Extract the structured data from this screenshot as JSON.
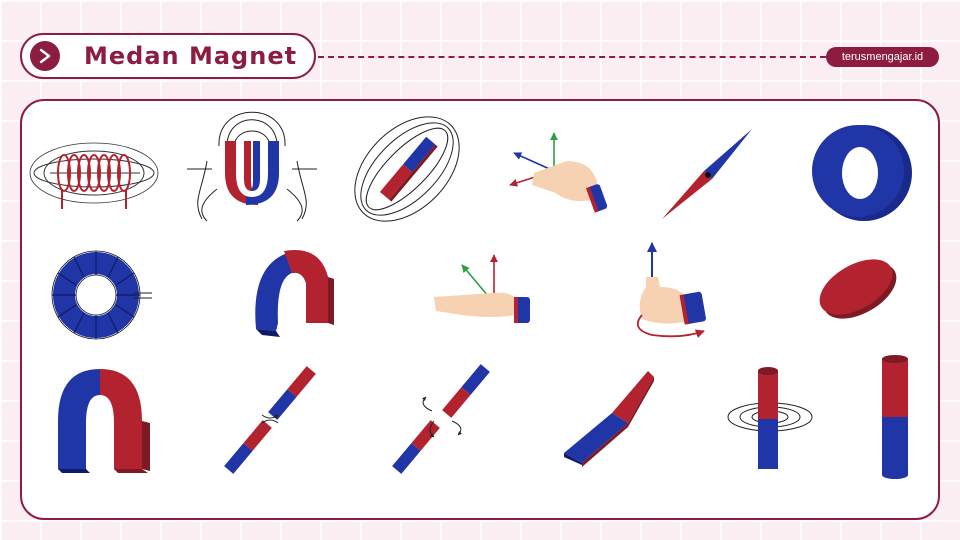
{
  "header": {
    "title": "Medan Magnet",
    "title_icon": "chevron-right-icon"
  },
  "brand": {
    "label": "terusmengajar.id"
  },
  "colors": {
    "accent": "#8c1d40",
    "magnet_red": "#b3232f",
    "magnet_blue": "#2035a6",
    "skin": "#f6d2b3"
  },
  "illustrations": [
    "solenoid-field-icon",
    "u-magnet-field-lines-icon",
    "bar-magnet-field-lines-icon",
    "right-hand-rule-vectors-icon",
    "compass-needle-icon",
    "ring-magnet-icon",
    "toroid-coil-icon",
    "horseshoe-magnet-icon",
    "flat-hand-vectors-icon",
    "thumb-rule-icon",
    "disc-magnet-icon",
    "large-u-magnet-icon",
    "attracting-bar-magnets-icon",
    "repelling-bar-magnets-icon",
    "flat-bar-magnet-icon",
    "cylinder-field-rings-icon",
    "cylinder-magnet-icon"
  ]
}
